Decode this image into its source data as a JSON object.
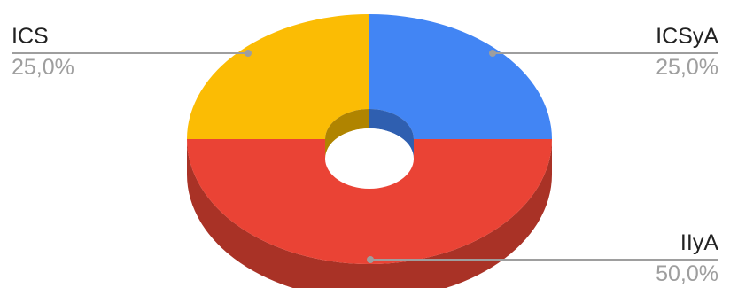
{
  "chart_data": {
    "type": "pie",
    "style": "3d-donut",
    "title": "",
    "slices": [
      {
        "label": "ICSyA",
        "value": 25.0,
        "percent_label": "25,0%",
        "color": "#4285f4",
        "side_color": "#2f5fb0"
      },
      {
        "label": "IIyA",
        "value": 50.0,
        "percent_label": "50,0%",
        "color": "#ea4335",
        "side_color": "#a93226"
      },
      {
        "label": "ICS",
        "value": 25.0,
        "percent_label": "25,0%",
        "color": "#fbbc04",
        "side_color": "#b08400"
      }
    ],
    "legend": "none",
    "start_angle_deg": 0,
    "direction": "clockwise"
  }
}
